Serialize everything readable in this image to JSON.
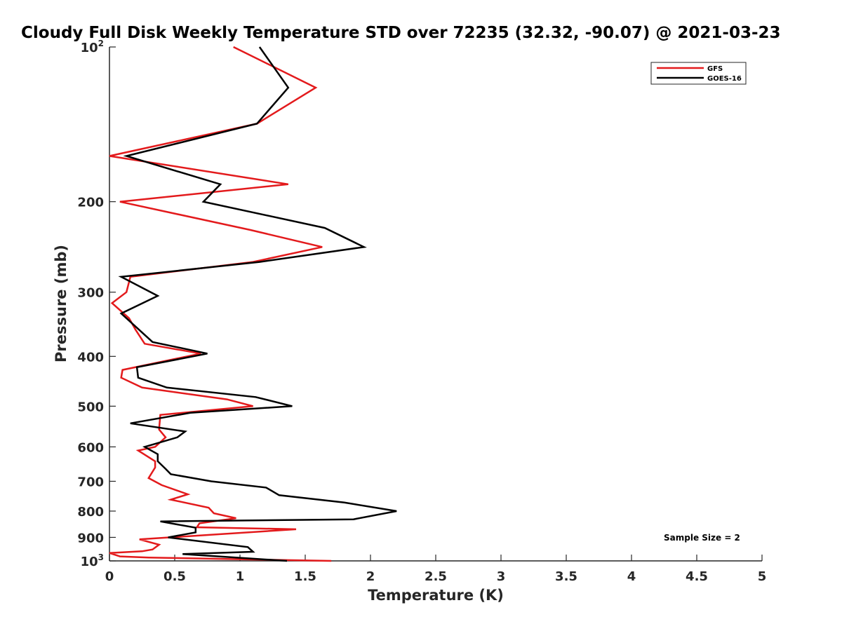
{
  "chart_data": {
    "type": "line",
    "title": "Cloudy Full Disk Weekly Temperature STD over 72235 (32.32, -90.07) @ 2021-03-23",
    "xlabel": "Temperature (K)",
    "ylabel": "Pressure (mb)",
    "xlim": [
      0,
      5
    ],
    "ylim": [
      100,
      1000
    ],
    "yscale": "log",
    "y_reversed": true,
    "xticks": [
      0,
      0.5,
      1,
      1.5,
      2,
      2.5,
      3,
      3.5,
      4,
      4.5,
      5
    ],
    "xtick_labels": [
      "0",
      "0.5",
      "1",
      "1.5",
      "2",
      "2.5",
      "3",
      "3.5",
      "4",
      "4.5",
      "5"
    ],
    "yticks": [
      {
        "value": 100,
        "label": "10",
        "sup": "2"
      },
      {
        "value": 200,
        "label": "200",
        "sup": ""
      },
      {
        "value": 300,
        "label": "300",
        "sup": ""
      },
      {
        "value": 400,
        "label": "400",
        "sup": ""
      },
      {
        "value": 500,
        "label": "500",
        "sup": ""
      },
      {
        "value": 600,
        "label": "600",
        "sup": ""
      },
      {
        "value": 700,
        "label": "700",
        "sup": ""
      },
      {
        "value": 800,
        "label": "800",
        "sup": ""
      },
      {
        "value": 900,
        "label": "900",
        "sup": ""
      },
      {
        "value": 1000,
        "label": "10",
        "sup": "3"
      }
    ],
    "grid": false,
    "legend_position": "top-right",
    "annotation": "Sample Size = 2",
    "series": [
      {
        "name": "GFS",
        "color": "#e31a1c",
        "points": [
          [
            0.95,
            100
          ],
          [
            1.58,
            120
          ],
          [
            1.13,
            141
          ],
          [
            0.0,
            163
          ],
          [
            1.37,
            185
          ],
          [
            0.08,
            200
          ],
          [
            1.08,
            227
          ],
          [
            1.63,
            245
          ],
          [
            1.1,
            262
          ],
          [
            0.16,
            280
          ],
          [
            0.13,
            300
          ],
          [
            0.02,
            315
          ],
          [
            0.15,
            337
          ],
          [
            0.2,
            355
          ],
          [
            0.27,
            378
          ],
          [
            0.7,
            395
          ],
          [
            0.1,
            425
          ],
          [
            0.09,
            440
          ],
          [
            0.25,
            460
          ],
          [
            0.9,
            485
          ],
          [
            1.1,
            500
          ],
          [
            0.39,
            520
          ],
          [
            0.38,
            555
          ],
          [
            0.43,
            575
          ],
          [
            0.35,
            600
          ],
          [
            0.22,
            610
          ],
          [
            0.35,
            640
          ],
          [
            0.35,
            658
          ],
          [
            0.3,
            690
          ],
          [
            0.4,
            712
          ],
          [
            0.6,
            742
          ],
          [
            0.47,
            760
          ],
          [
            0.76,
            788
          ],
          [
            0.8,
            808
          ],
          [
            0.97,
            826
          ],
          [
            0.69,
            845
          ],
          [
            0.67,
            860
          ],
          [
            1.43,
            868
          ],
          [
            0.23,
            908
          ],
          [
            0.38,
            930
          ],
          [
            0.33,
            950
          ],
          [
            0.25,
            958
          ],
          [
            0.0,
            965
          ],
          [
            0.08,
            980
          ],
          [
            0.3,
            985
          ],
          [
            1.7,
            1000
          ]
        ]
      },
      {
        "name": "GOES-16",
        "color": "#000000",
        "points": [
          [
            1.15,
            100
          ],
          [
            1.37,
            120
          ],
          [
            1.13,
            141
          ],
          [
            0.13,
            163
          ],
          [
            0.85,
            185
          ],
          [
            0.72,
            200
          ],
          [
            1.65,
            225
          ],
          [
            1.95,
            245
          ],
          [
            1.15,
            262
          ],
          [
            0.09,
            280
          ],
          [
            0.37,
            305
          ],
          [
            0.09,
            330
          ],
          [
            0.33,
            375
          ],
          [
            0.75,
            395
          ],
          [
            0.21,
            420
          ],
          [
            0.22,
            440
          ],
          [
            0.44,
            460
          ],
          [
            1.12,
            480
          ],
          [
            1.4,
            500
          ],
          [
            0.62,
            515
          ],
          [
            0.16,
            540
          ],
          [
            0.58,
            560
          ],
          [
            0.52,
            575
          ],
          [
            0.27,
            600
          ],
          [
            0.37,
            620
          ],
          [
            0.37,
            640
          ],
          [
            0.43,
            662
          ],
          [
            0.47,
            678
          ],
          [
            0.78,
            700
          ],
          [
            1.2,
            720
          ],
          [
            1.3,
            745
          ],
          [
            1.8,
            770
          ],
          [
            2.2,
            800
          ],
          [
            1.87,
            830
          ],
          [
            0.39,
            838
          ],
          [
            0.66,
            862
          ],
          [
            0.66,
            880
          ],
          [
            0.45,
            900
          ],
          [
            1.06,
            940
          ],
          [
            1.1,
            960
          ],
          [
            0.56,
            970
          ],
          [
            1.36,
            1000
          ]
        ]
      }
    ]
  }
}
